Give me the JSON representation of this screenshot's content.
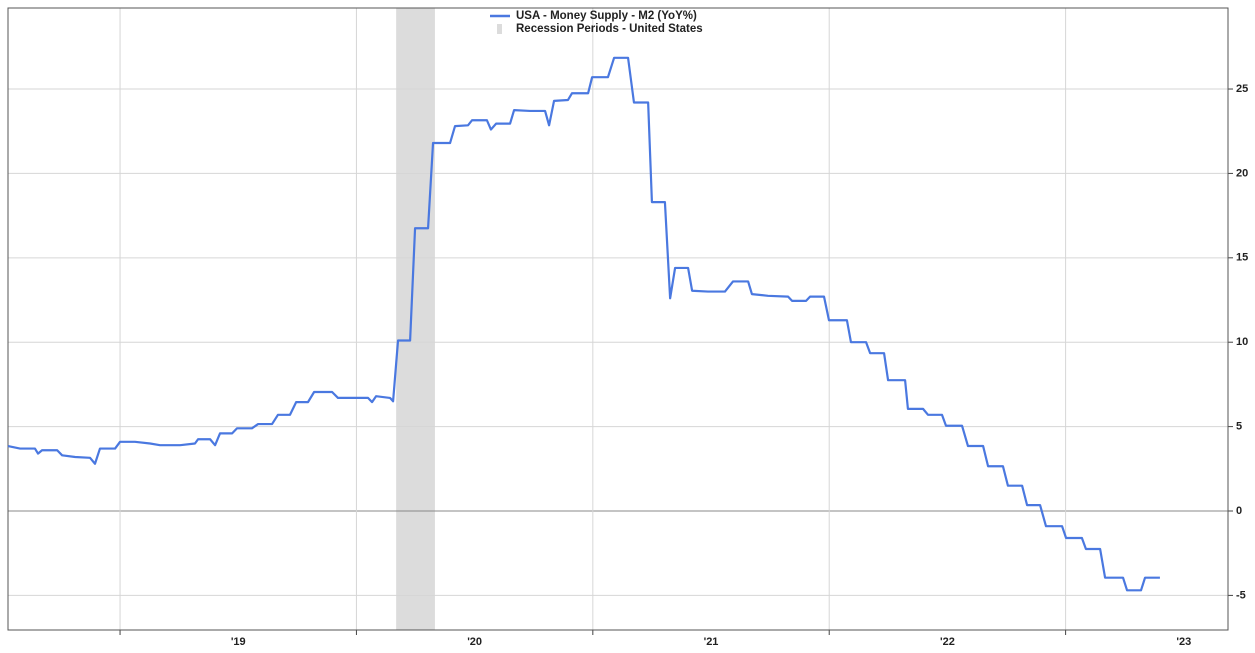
{
  "chart_data": {
    "type": "line",
    "legend": "top",
    "grid": true,
    "x": [
      2018.526,
      2018.577,
      2018.64,
      2018.653,
      2018.67,
      2018.734,
      2018.755,
      2018.81,
      2018.873,
      2018.894,
      2018.915,
      2018.979,
      2019.0,
      2019.063,
      2019.127,
      2019.169,
      2019.254,
      2019.317,
      2019.33,
      2019.381,
      2019.402,
      2019.423,
      2019.474,
      2019.495,
      2019.558,
      2019.584,
      2019.643,
      2019.668,
      2019.719,
      2019.745,
      2019.795,
      2019.821,
      2019.897,
      2019.922,
      2020.007,
      2020.049,
      2020.066,
      2020.083,
      2020.142,
      2020.155,
      2020.176,
      2020.227,
      2020.248,
      2020.303,
      2020.324,
      2020.396,
      2020.417,
      2020.472,
      2020.489,
      2020.552,
      2020.569,
      2020.591,
      2020.65,
      2020.667,
      2020.734,
      2020.798,
      2020.815,
      2020.836,
      2020.895,
      2020.912,
      2020.98,
      2020.997,
      2021.064,
      2021.09,
      2021.149,
      2021.174,
      2021.234,
      2021.25,
      2021.305,
      2021.327,
      2021.348,
      2021.403,
      2021.42,
      2021.487,
      2021.559,
      2021.593,
      2021.657,
      2021.673,
      2021.741,
      2021.826,
      2021.843,
      2021.902,
      2021.919,
      2021.978,
      2021.999,
      2022.075,
      2022.092,
      2022.156,
      2022.173,
      2022.232,
      2022.249,
      2022.321,
      2022.333,
      2022.397,
      2022.418,
      2022.477,
      2022.494,
      2022.562,
      2022.587,
      2022.651,
      2022.672,
      2022.735,
      2022.756,
      2022.816,
      2022.837,
      2022.892,
      2022.917,
      2022.985,
      2023.002,
      2023.069,
      2023.086,
      2023.146,
      2023.167,
      2023.243,
      2023.26,
      2023.319,
      2023.336,
      2023.399
    ],
    "series": [
      {
        "name": "USA - Money Supply - M2 (YoY%)",
        "color": "#4a78e0",
        "values": [
          3.85,
          3.7,
          3.7,
          3.4,
          3.6,
          3.6,
          3.3,
          3.2,
          3.15,
          2.8,
          3.7,
          3.7,
          4.1,
          4.1,
          4.0,
          3.9,
          3.9,
          4.0,
          4.25,
          4.25,
          3.9,
          4.6,
          4.6,
          4.9,
          4.9,
          5.15,
          5.15,
          5.7,
          5.7,
          6.45,
          6.45,
          7.05,
          7.05,
          6.7,
          6.7,
          6.7,
          6.45,
          6.8,
          6.7,
          6.5,
          10.1,
          10.1,
          16.75,
          16.75,
          21.8,
          21.8,
          22.8,
          22.85,
          23.15,
          23.15,
          22.6,
          22.95,
          22.95,
          23.75,
          23.7,
          23.7,
          22.85,
          24.3,
          24.35,
          24.75,
          24.75,
          25.7,
          25.7,
          26.85,
          26.85,
          24.2,
          24.2,
          18.3,
          18.3,
          12.6,
          14.4,
          14.4,
          13.05,
          13.0,
          13.0,
          13.6,
          13.6,
          12.85,
          12.75,
          12.7,
          12.45,
          12.45,
          12.7,
          12.7,
          11.3,
          11.3,
          10.0,
          10.0,
          9.35,
          9.35,
          7.75,
          7.75,
          6.05,
          6.05,
          5.7,
          5.7,
          5.05,
          5.05,
          3.85,
          3.85,
          2.65,
          2.65,
          1.5,
          1.5,
          0.35,
          0.35,
          -0.9,
          -0.9,
          -1.6,
          -1.6,
          -2.25,
          -2.25,
          -3.95,
          -3.95,
          -4.7,
          -4.7,
          -3.95,
          -3.95
        ]
      },
      {
        "name": "Recession Periods - United States",
        "color": "#dcdcdc",
        "start": 2020.168,
        "end": 2020.332
      }
    ],
    "xlim": [
      2018.526,
      2023.687
    ],
    "xticks": [
      {
        "value": 2019,
        "label": "'19"
      },
      {
        "value": 2020,
        "label": "'20"
      },
      {
        "value": 2021,
        "label": "'21"
      },
      {
        "value": 2022,
        "label": "'22"
      },
      {
        "value": 2023,
        "label": "'23"
      }
    ],
    "ylim": [
      -7.05,
      29.8
    ],
    "yticks": [
      -5,
      0,
      5,
      10,
      15,
      20,
      25
    ]
  }
}
